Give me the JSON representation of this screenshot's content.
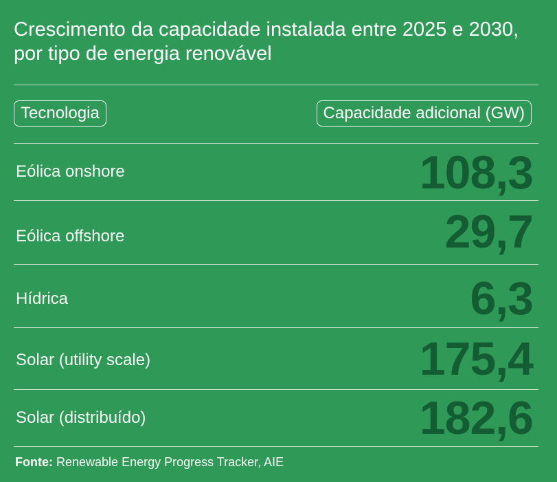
{
  "title": "Crescimento da capacidade instalada entre 2025 e 2030, por tipo de energia renovável",
  "table": {
    "headers": {
      "technology": "Tecnologia",
      "capacity": "Capacidade adicional (GW)"
    },
    "rows": [
      {
        "technology": "Eólica onshore",
        "capacity": "108,3"
      },
      {
        "technology": "Eólica offshore",
        "capacity": "29,7"
      },
      {
        "technology": "Hídrica",
        "capacity": "6,3"
      },
      {
        "technology": "Solar (utility scale)",
        "capacity": "175,4"
      },
      {
        "technology": "Solar (distribuído)",
        "capacity": "182,6"
      }
    ]
  },
  "source": {
    "label": "Fonte:",
    "text": "Renewable Energy Progress Tracker, AIE"
  },
  "colors": {
    "background": "#2f9a57",
    "value_text": "#145c32",
    "text": "#ffffff",
    "divider": "#c9dfc9"
  }
}
